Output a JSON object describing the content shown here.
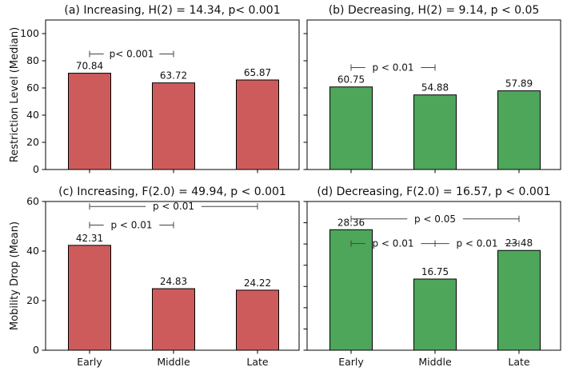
{
  "chart_data": [
    {
      "type": "bar",
      "title": "(a) Increasing, H(2) = 14.34, p< 0.001",
      "ylabel": "Restriction Level (Median)",
      "categories": [
        "Early",
        "Middle",
        "Late"
      ],
      "values": [
        70.84,
        63.72,
        65.87
      ],
      "value_labels": [
        "70.84",
        "63.72",
        "65.87"
      ],
      "ylim": [
        0,
        110
      ],
      "yticks": [
        "0",
        "20",
        "40",
        "60",
        "80",
        "100"
      ],
      "xticklabels_visible": false,
      "color": "#cd5b5b",
      "annotations": [
        {
          "from": 0,
          "to": 1,
          "label": "p< 0.001",
          "level": 85
        }
      ]
    },
    {
      "type": "bar",
      "title": "(b) Decreasing, H(2) = 9.14, p < 0.05",
      "ylabel": "",
      "categories": [
        "Early",
        "Middle",
        "Late"
      ],
      "values": [
        60.75,
        54.88,
        57.89
      ],
      "value_labels": [
        "60.75",
        "54.88",
        "57.89"
      ],
      "ylim": [
        0,
        110
      ],
      "yticks": [],
      "xticklabels_visible": false,
      "color": "#4ea65b",
      "annotations": [
        {
          "from": 0,
          "to": 1,
          "label": "p < 0.01",
          "level": 75
        }
      ]
    },
    {
      "type": "bar",
      "title": "(c) Increasing, F(2.0) = 49.94, p < 0.001",
      "ylabel": "Mobility Drop (Mean)",
      "categories": [
        "Early",
        "Middle",
        "Late"
      ],
      "values": [
        42.31,
        24.83,
        24.22
      ],
      "value_labels": [
        "42.31",
        "24.83",
        "24.22"
      ],
      "ylim": [
        0,
        60
      ],
      "yticks": [
        "0",
        "20",
        "40",
        "60"
      ],
      "xticklabels_visible": true,
      "color": "#cd5b5b",
      "annotations": [
        {
          "from": 0,
          "to": 2,
          "label": "p < 0.01",
          "level": 58
        },
        {
          "from": 0,
          "to": 1,
          "label": "p < 0.01",
          "level": 50.5
        }
      ]
    },
    {
      "type": "bar",
      "title": "(d) Decreasing, F(2.0) = 16.57, p < 0.001",
      "ylabel": "",
      "categories": [
        "Early",
        "Middle",
        "Late"
      ],
      "values": [
        28.36,
        16.75,
        23.48
      ],
      "value_labels": [
        "28.36",
        "16.75",
        "23.48"
      ],
      "ylim": [
        0,
        35
      ],
      "yticks": [],
      "xticklabels_visible": true,
      "color": "#4ea65b",
      "annotations": [
        {
          "from": 0,
          "to": 2,
          "label": "p < 0.05",
          "level": 30.9
        },
        {
          "from": 0,
          "to": 1,
          "label": "p < 0.01",
          "level": 25.1
        },
        {
          "from": 1,
          "to": 2,
          "label": "p < 0.01",
          "level": 25.1
        }
      ]
    }
  ]
}
